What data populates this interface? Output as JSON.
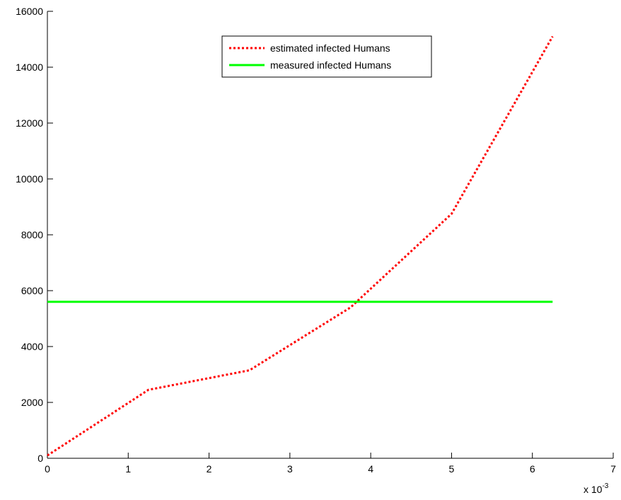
{
  "chart_data": {
    "type": "line",
    "title": "",
    "xlabel": "",
    "ylabel": "",
    "x_multiplier": {
      "base": "x 10",
      "exponent": "-3"
    },
    "xlim": [
      0,
      7
    ],
    "ylim": [
      0,
      16000
    ],
    "xticks": [
      "0",
      "1",
      "2",
      "3",
      "4",
      "5",
      "6",
      "7"
    ],
    "yticks": [
      "0",
      "2000",
      "4000",
      "6000",
      "8000",
      "10000",
      "12000",
      "14000",
      "16000"
    ],
    "grid": false,
    "legend_position": "top-center",
    "series": [
      {
        "name": "estimated infected Humans",
        "color": "#ff0000",
        "style": "dotted",
        "x": [
          0,
          1.25,
          2.5,
          3.75,
          5,
          6.25
        ],
        "y": [
          100,
          2450,
          3150,
          5400,
          8750,
          15100
        ]
      },
      {
        "name": "measured infected Humans",
        "color": "#00ff00",
        "style": "solid",
        "x": [
          0,
          6.25
        ],
        "y": [
          5600,
          5600
        ]
      }
    ]
  }
}
